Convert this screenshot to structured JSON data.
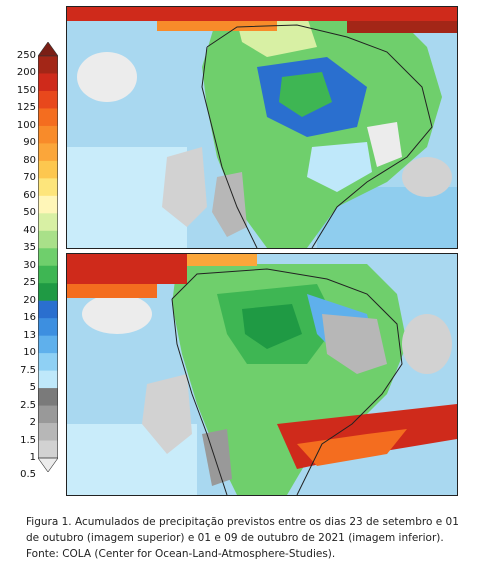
{
  "legend": {
    "labels": [
      "250",
      "200",
      "150",
      "125",
      "100",
      "90",
      "80",
      "70",
      "60",
      "50",
      "40",
      "35",
      "30",
      "25",
      "20",
      "16",
      "13",
      "10",
      "7.5",
      "5",
      "2.5",
      "2",
      "1.5",
      "1",
      "0.5"
    ],
    "colors": [
      "#7a1f16",
      "#a32617",
      "#cf2a1b",
      "#e8481c",
      "#f46d1f",
      "#f88b2a",
      "#fba63a",
      "#fdc74f",
      "#fde57b",
      "#fff6b8",
      "#d8f0a4",
      "#a9e089",
      "#6fcf6c",
      "#3eb653",
      "#1f9a44",
      "#2a6fcf",
      "#3d8fe0",
      "#5fb0ec",
      "#8fd0f4",
      "#bfe8fa",
      "#7a7a7a",
      "#999999",
      "#b7b7b7",
      "#d2d2d2",
      "#ececec"
    ]
  },
  "maps": {
    "top": {
      "label": "imagem superior"
    },
    "bottom": {
      "label": "imagem inferior"
    }
  },
  "caption": {
    "line1": "Figura 1. Acumulados de precipitação previstos entre os dias 23 de setembro e 01",
    "line2": "de outubro (imagem superior) e 01 e 09 de outubro de 2021 (imagem inferior).",
    "line3": "Fonte: COLA (Center for Ocean-Land-Atmosphere-Studies)."
  }
}
